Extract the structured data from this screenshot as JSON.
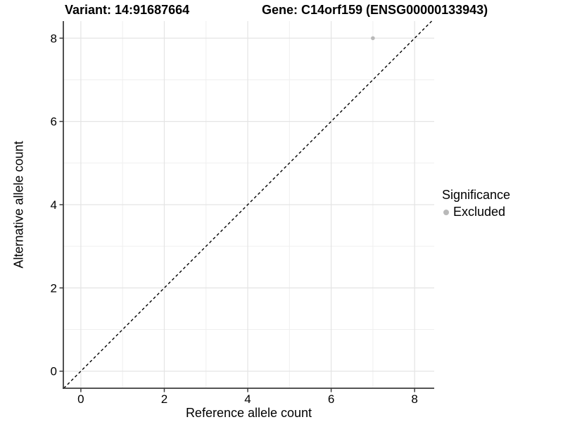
{
  "titles": {
    "variant": "Variant: 14:91687664",
    "gene": "Gene: C14orf159 (ENSG00000133943)"
  },
  "legend": {
    "title": "Significance",
    "items": [
      {
        "label": "Excluded",
        "color": "#b9b9b9",
        "marker": "circle-icon"
      }
    ]
  },
  "chart_data": {
    "type": "scatter",
    "title_left": "Variant: 14:91687664",
    "title_right": "Gene: C14orf159 (ENSG00000133943)",
    "xlabel": "Reference allele count",
    "ylabel": "Alternative allele count",
    "xlim": [
      -0.42,
      8.47
    ],
    "ylim": [
      -0.41,
      8.41
    ],
    "xticks": [
      0,
      2,
      4,
      6,
      8
    ],
    "yticks": [
      0,
      2,
      4,
      6,
      8
    ],
    "minor_ticks_x": [
      1,
      3,
      5,
      7
    ],
    "minor_ticks_y": [
      1,
      3,
      5,
      7
    ],
    "grid": "on",
    "series": [
      {
        "name": "Excluded",
        "color": "#b9b9b9",
        "points": [
          {
            "x": 7,
            "y": 8
          }
        ]
      }
    ],
    "reference_line": {
      "kind": "identity",
      "equation": "y = x",
      "style": "dashed",
      "color": "#000000",
      "x1": -0.41,
      "y1": -0.41,
      "x2": 8.41,
      "y2": 8.41
    },
    "legend": {
      "title": "Significance",
      "entries": [
        "Excluded"
      ],
      "position": "right"
    }
  },
  "style": {
    "background": "#ffffff",
    "grid_major_color": "#e4e4e4",
    "grid_minor_color": "#efefef",
    "axis_color": "#3c3c3c",
    "tick_label_color": "#000000",
    "point_color": "#b9b9b9",
    "dashed_line_color": "#000000"
  }
}
